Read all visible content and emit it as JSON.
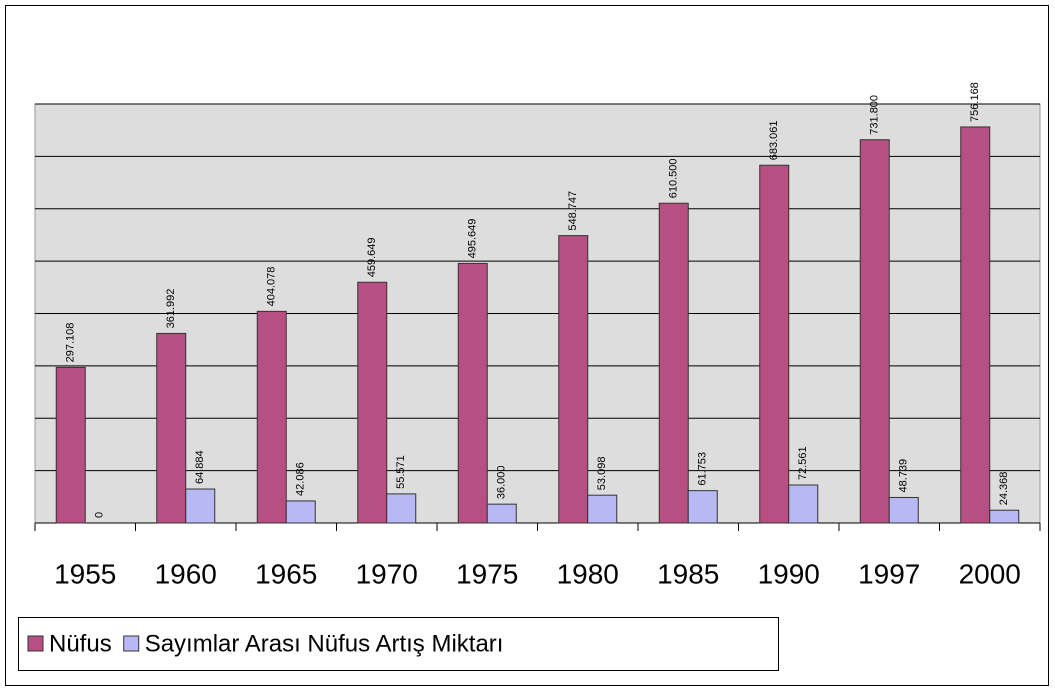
{
  "chart_data": {
    "type": "bar",
    "categories": [
      "1955",
      "1960",
      "1965",
      "1970",
      "1975",
      "1980",
      "1985",
      "1990",
      "1997",
      "2000"
    ],
    "series": [
      {
        "name": "Nüfus",
        "color": "#b84f82",
        "values": [
          297108,
          361992,
          404078,
          459649,
          495649,
          548747,
          610500,
          683061,
          731800,
          756168
        ],
        "value_labels": [
          "297.108",
          "361.992",
          "404.078",
          "459.649",
          "495.649",
          "548.747",
          "610.500",
          "683.061",
          "731.800",
          "756.168"
        ]
      },
      {
        "name": "Sayımlar Arası Nüfus Artış Miktarı",
        "color": "#b8b8f5",
        "values": [
          0,
          64884,
          42086,
          55571,
          36000,
          53098,
          61753,
          72561,
          48739,
          24368
        ],
        "value_labels": [
          "0",
          "64.884",
          "42.086",
          "55.571",
          "36.000",
          "53.098",
          "61.753",
          "72.561",
          "48.739",
          "24.368"
        ]
      }
    ],
    "ylim": [
      0,
      800000
    ],
    "yticks": [
      0,
      100000,
      200000,
      300000,
      400000,
      500000,
      600000,
      700000,
      800000
    ],
    "grid": true
  }
}
